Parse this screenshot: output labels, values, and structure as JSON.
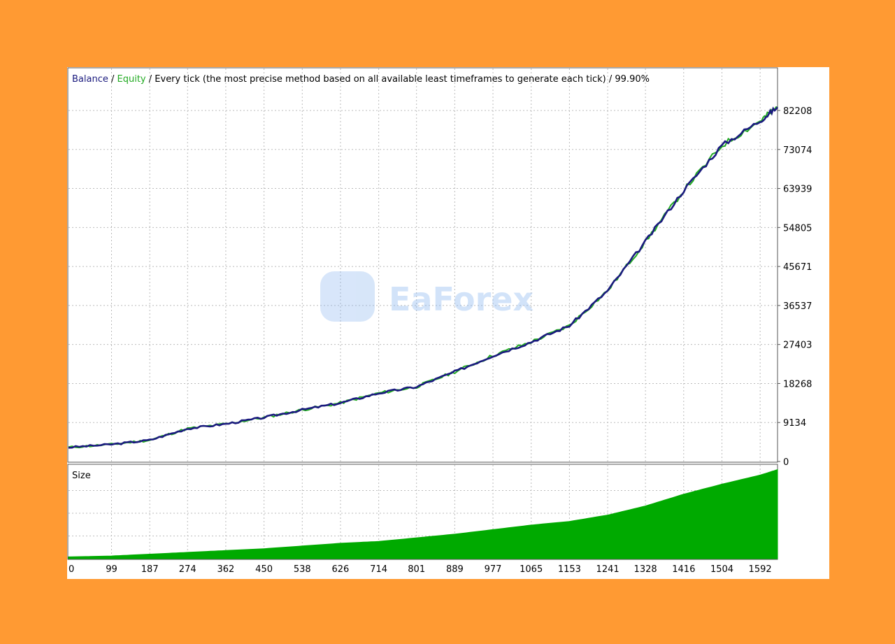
{
  "header": {
    "balance_label": "Balance",
    "separator": " / ",
    "equity_label": "Equity",
    "description": "Every tick (the most precise method based on all available least timeframes to generate each tick)",
    "quality": "99.90%"
  },
  "size_panel": {
    "label": "Size"
  },
  "watermark": {
    "text": "EaForex"
  },
  "colors": {
    "background": "#FF9A33",
    "balance": "#1A1A7E",
    "equity": "#22AA22",
    "size_fill": "#00AA00",
    "grid": "#BBBBBB"
  },
  "chart_data": [
    {
      "type": "line",
      "title": "Balance / Equity",
      "ylim": [
        0,
        82208
      ],
      "y_ticks": [
        0,
        9134,
        18268,
        27403,
        36537,
        45671,
        54805,
        63939,
        73074,
        82208
      ],
      "x_ticks": [
        0,
        99,
        187,
        274,
        362,
        450,
        538,
        626,
        714,
        801,
        889,
        977,
        1065,
        1153,
        1241,
        1328,
        1416,
        1504,
        1592
      ],
      "xlim": [
        0,
        1632
      ],
      "grid": true,
      "series": [
        {
          "name": "Balance",
          "x": [
            0,
            99,
            187,
            274,
            362,
            450,
            538,
            626,
            714,
            801,
            889,
            977,
            1065,
            1153,
            1241,
            1328,
            1416,
            1504,
            1592,
            1632
          ],
          "y": [
            3300,
            4000,
            5000,
            7700,
            8800,
            10300,
            12100,
            13700,
            16000,
            17500,
            21000,
            24800,
            28000,
            31800,
            40000,
            51500,
            63500,
            74000,
            79800,
            83000
          ]
        },
        {
          "name": "Equity",
          "x": [
            0,
            99,
            187,
            274,
            362,
            450,
            538,
            626,
            714,
            801,
            889,
            977,
            1065,
            1153,
            1241,
            1328,
            1416,
            1504,
            1592,
            1632
          ],
          "y": [
            3300,
            4000,
            5000,
            7700,
            8800,
            10300,
            12100,
            13700,
            16000,
            17500,
            21000,
            24800,
            28000,
            31800,
            40000,
            51500,
            63500,
            74000,
            79800,
            83000
          ]
        }
      ]
    },
    {
      "type": "area",
      "title": "Size",
      "x": [
        0,
        99,
        187,
        274,
        362,
        450,
        538,
        626,
        714,
        801,
        889,
        977,
        1065,
        1153,
        1241,
        1328,
        1416,
        1504,
        1592,
        1632
      ],
      "values": [
        0.02,
        0.03,
        0.05,
        0.07,
        0.09,
        0.11,
        0.14,
        0.17,
        0.19,
        0.23,
        0.27,
        0.32,
        0.37,
        0.41,
        0.48,
        0.58,
        0.71,
        0.82,
        0.92,
        0.98
      ],
      "ylim": [
        0,
        1
      ],
      "grid": true
    }
  ]
}
